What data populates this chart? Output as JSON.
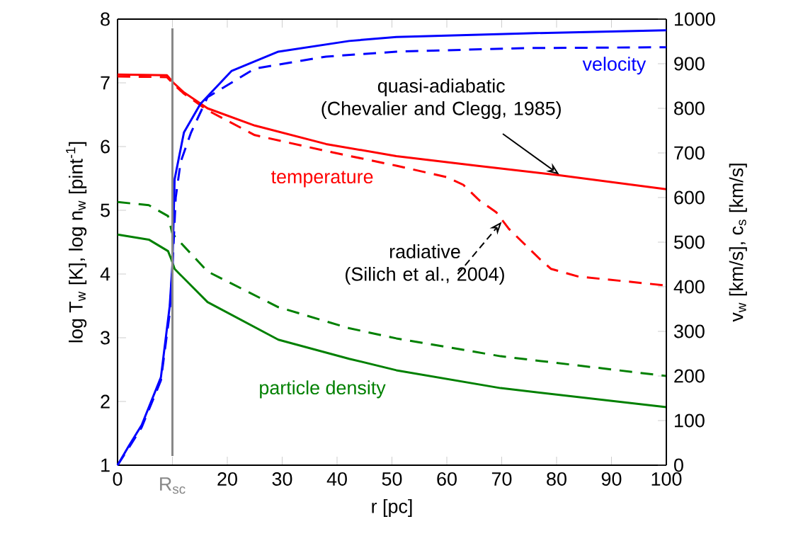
{
  "chart_data": {
    "type": "line",
    "xlabel": "r [pc]",
    "ylabel": "log T$_{w}$ [K], log n$_{w}$ [pint$^{-1}$]",
    "y2label": "v$_{w}$ [km/s], c$_{s}$ [km/s]",
    "xlim": [
      0,
      100
    ],
    "ylim": [
      1,
      8
    ],
    "y2lim": [
      0,
      1000
    ],
    "xticks": [
      0,
      {
        "value": 10,
        "label": null
      },
      20,
      30,
      40,
      50,
      60,
      70,
      80,
      90,
      100
    ],
    "yticks": [
      1,
      2,
      3,
      4,
      5,
      6,
      7,
      8
    ],
    "y2ticks": [
      0,
      100,
      200,
      300,
      400,
      500,
      600,
      700,
      800,
      900,
      1000
    ],
    "ref_lines": [
      {
        "axis": "x",
        "value": 10,
        "label": "R$_{sc}$",
        "color": "#888888"
      }
    ],
    "annotations": [
      {
        "text": "quasi-adiabatic\n(Chevalier and Clegg, 1985)",
        "x": 80.5,
        "y": 5.56
      },
      {
        "text": "radiative\n(Silich et al., 2004)",
        "x": 70,
        "y": 4.82
      }
    ],
    "series": [
      {
        "name": "velocity",
        "color": "#0000ff",
        "axis": "y2",
        "line_style": "solid",
        "x": [
          0,
          2,
          4.4,
          7.9,
          9.5,
          10,
          10.4,
          12.1,
          15.1,
          20.8,
          29.3,
          42.2,
          50.8,
          74,
          100
        ],
        "values": [
          0,
          42,
          90,
          197,
          356,
          450,
          641,
          746,
          810,
          884,
          927,
          951,
          960,
          968,
          975
        ]
      },
      {
        "color": "#0000ff",
        "axis": "y2",
        "line_style": "dashed",
        "x": [
          0,
          2,
          4.4,
          7.9,
          9.5,
          10,
          10.6,
          11.5,
          13.4,
          16.4,
          25,
          38,
          50.8,
          74,
          100
        ],
        "values": [
          0,
          38,
          85,
          190,
          340,
          440,
          600,
          680,
          746,
          825,
          889,
          916,
          927,
          935,
          937
        ]
      },
      {
        "name": "temperature",
        "color": "#ff0000",
        "line_style": "solid",
        "x": [
          0,
          9,
          10.2,
          12.1,
          16.4,
          25,
          38,
          50.8,
          65.4,
          80.5,
          100
        ],
        "values": [
          7.13,
          7.12,
          7.0,
          6.85,
          6.6,
          6.33,
          6.04,
          5.85,
          5.7,
          5.55,
          5.33
        ]
      },
      {
        "color": "#ff0000",
        "line_style": "dashed",
        "x": [
          0,
          9,
          10.2,
          12.1,
          16.4,
          25,
          38,
          50.8,
          60,
          63,
          66,
          69,
          71.3,
          77,
          79,
          84,
          100
        ],
        "values": [
          7.1,
          7.09,
          6.98,
          6.83,
          6.57,
          6.18,
          5.93,
          5.7,
          5.52,
          5.4,
          5.15,
          4.97,
          4.71,
          4.23,
          4.08,
          3.96,
          3.82
        ]
      },
      {
        "name": "particle density",
        "color": "#008000",
        "line_style": "solid",
        "x": [
          0,
          5.7,
          9.2,
          9.8,
          10.4,
          16.4,
          29.3,
          42.2,
          50.8,
          69.8,
          100
        ],
        "values": [
          4.62,
          4.54,
          4.36,
          4.23,
          4.08,
          3.56,
          2.97,
          2.67,
          2.49,
          2.21,
          1.91
        ]
      },
      {
        "color": "#008000",
        "line_style": "dashed",
        "x": [
          0,
          5.7,
          9.2,
          10,
          16.4,
          29.3,
          42.2,
          50.8,
          69.8,
          100
        ],
        "values": [
          5.13,
          5.08,
          4.91,
          4.63,
          4.04,
          3.48,
          3.15,
          2.99,
          2.71,
          2.4
        ]
      }
    ]
  }
}
